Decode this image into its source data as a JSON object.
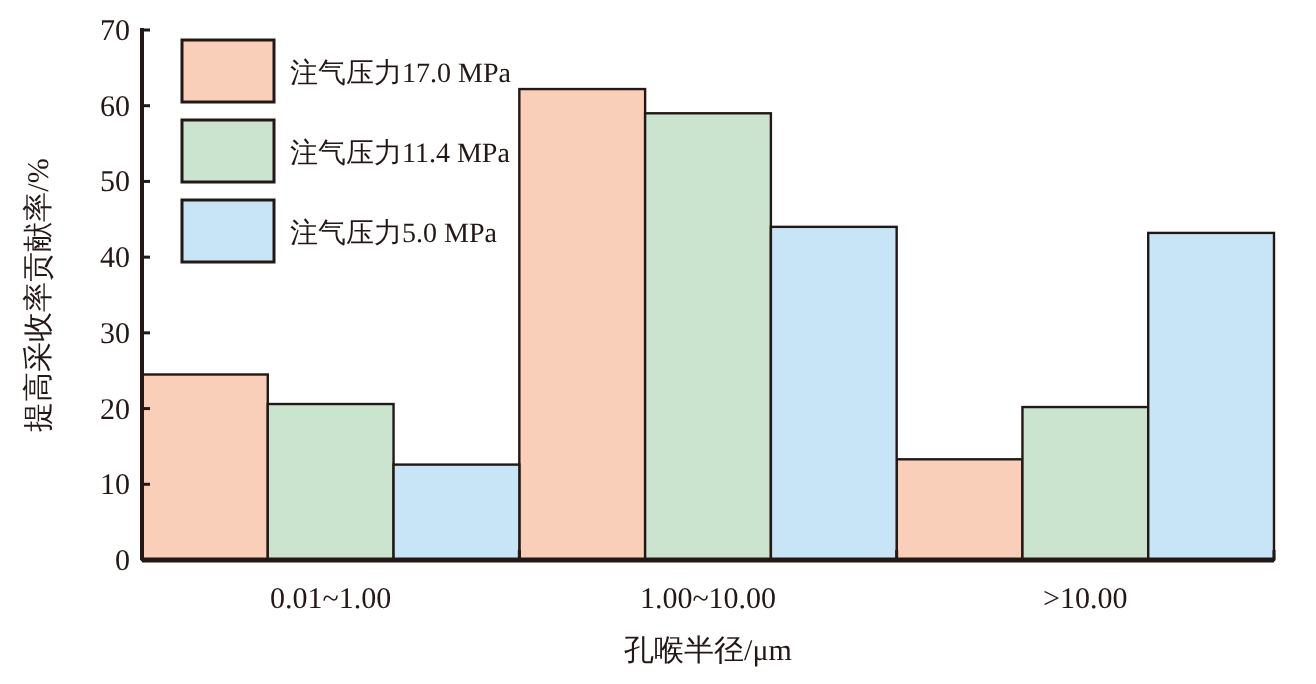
{
  "chart_data": {
    "type": "bar",
    "xlabel": "孔喉半径/μm",
    "ylabel": "提高采收率贡献率/%",
    "categories": [
      "0.01~1.00",
      "1.00~10.00",
      ">10.00"
    ],
    "series": [
      {
        "name": "注气压力17.0 MPa",
        "color": "#f9cfb9",
        "values": [
          24.5,
          62.2,
          13.3
        ]
      },
      {
        "name": "注气压力11.4 MPa",
        "color": "#cbe4cf",
        "values": [
          20.6,
          59.0,
          20.2
        ]
      },
      {
        "name": "注气压力5.0 MPa",
        "color": "#c7e5f7",
        "values": [
          12.6,
          44.0,
          43.2
        ]
      }
    ],
    "ylim": [
      0,
      70
    ],
    "yticks": [
      0,
      10,
      20,
      30,
      40,
      50,
      60,
      70
    ],
    "grid": false,
    "legend": "top left"
  }
}
